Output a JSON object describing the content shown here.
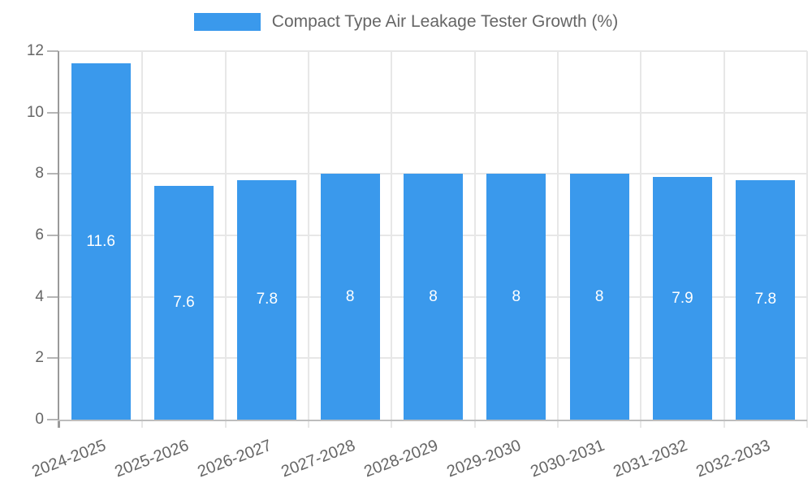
{
  "chart_data": {
    "type": "bar",
    "title": "Compact Type Air Leakage Tester Growth (%)",
    "legend_position": "top",
    "categories": [
      "2024-2025",
      "2025-2026",
      "2026-2027",
      "2027-2028",
      "2028-2029",
      "2029-2030",
      "2030-2031",
      "2031-2032",
      "2032-2033"
    ],
    "values": [
      11.6,
      7.6,
      7.8,
      8,
      8,
      8,
      8,
      7.9,
      7.8
    ],
    "xlabel": "",
    "ylabel": "",
    "ylim": [
      0,
      12
    ],
    "yticks": [
      0,
      2,
      4,
      6,
      8,
      10,
      12
    ],
    "grid": true,
    "colors": {
      "bar": "#3A99EC",
      "value_label": "#ffffff",
      "tick_label": "#666666",
      "grid_line": "#e7e7e7",
      "tick_mark": "#b5b5b5",
      "spine": "#9a9a9a",
      "axis_line": "#bdbdbd",
      "background": "#ffffff"
    }
  }
}
